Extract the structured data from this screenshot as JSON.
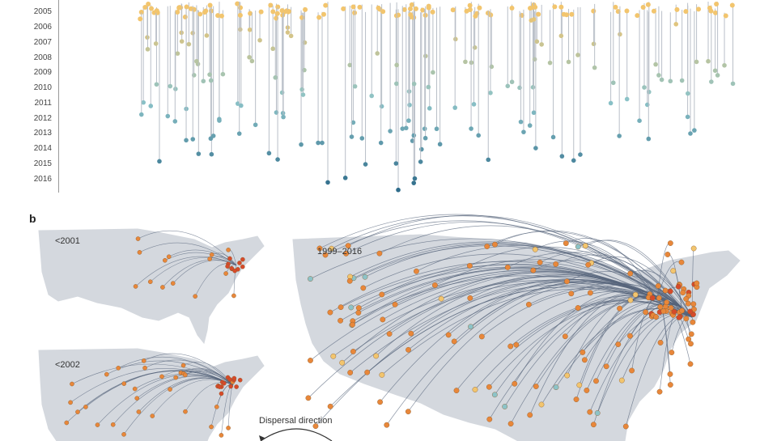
{
  "panel_b_label": "b",
  "years": [
    "2005",
    "2006",
    "2007",
    "2008",
    "2009",
    "2010",
    "2011",
    "2012",
    "2013",
    "2014",
    "2015",
    "2016"
  ],
  "maps": {
    "small_top_label": "<2001",
    "small_bottom_label": "<2002",
    "large_label": "1999–2016"
  },
  "legend": {
    "dispersal_direction": "Dispersal direction"
  },
  "colors": {
    "early": "#f2c56e",
    "mid": "#8cc3c8",
    "late": "#2e6b8a",
    "map_fill": "#d4d8de",
    "node_orange": "#e8873a",
    "node_red": "#d64a2a",
    "edge": "#56647a",
    "tree_line": "#b9bfc8"
  }
}
